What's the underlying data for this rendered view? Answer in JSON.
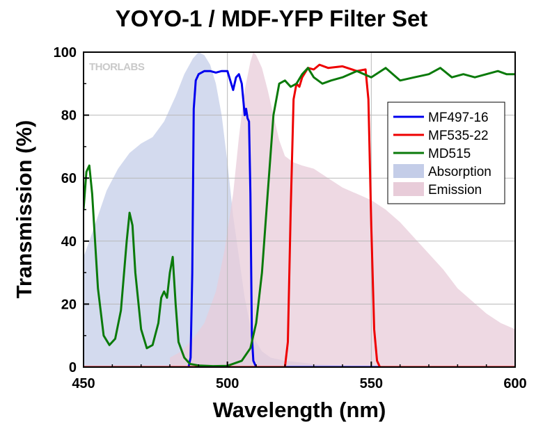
{
  "chart_data": {
    "type": "line",
    "title": "YOYO-1 / MDF-YFP Filter Set",
    "xlabel": "Wavelength (nm)",
    "ylabel": "Transmission (%)",
    "xlim": [
      450,
      600
    ],
    "ylim": [
      0,
      100
    ],
    "xticks": [
      450,
      500,
      550,
      600
    ],
    "yticks": [
      0,
      20,
      40,
      60,
      80,
      100
    ],
    "grid": true,
    "legend_position": "right",
    "watermark": "THORLABS",
    "series": [
      {
        "name": "MF497-16",
        "kind": "line",
        "color": "#0000ee",
        "x": [
          450,
          486.5,
          487.2,
          487.8,
          488.3,
          489,
          490,
          492,
          494,
          496,
          498,
          500,
          501,
          502,
          503,
          504,
          505,
          506,
          506.5,
          507,
          507.5,
          508,
          508.5,
          509,
          510,
          600
        ],
        "y": [
          0,
          0,
          3,
          30,
          82,
          91,
          93,
          94,
          94,
          93.5,
          94,
          94,
          91,
          88,
          92,
          93,
          90,
          80,
          82,
          79,
          78,
          55,
          10,
          2,
          0,
          0
        ]
      },
      {
        "name": "MF535-22",
        "kind": "line",
        "color": "#ee0000",
        "x": [
          450,
          520,
          521,
          522,
          523,
          524,
          525,
          526,
          528,
          530,
          532,
          535,
          540,
          545,
          548,
          549,
          550,
          551,
          552,
          553,
          600
        ],
        "y": [
          0,
          0,
          8,
          50,
          85,
          90,
          89,
          92,
          95,
          94.5,
          96,
          95,
          95.5,
          94,
          94.5,
          85,
          45,
          12,
          2,
          0,
          0
        ]
      },
      {
        "name": "MD515",
        "kind": "line",
        "color": "#0a7a0a",
        "x": [
          450,
          451,
          452,
          453,
          455,
          457,
          459,
          461,
          463,
          465,
          466,
          467,
          468,
          470,
          472,
          474,
          476,
          477,
          478,
          479,
          480,
          481,
          482,
          483,
          485,
          487,
          490,
          495,
          500,
          505,
          508,
          510,
          512,
          514,
          516,
          518,
          520,
          522,
          524,
          526,
          528,
          530,
          533,
          536,
          540,
          545,
          550,
          555,
          560,
          565,
          570,
          574,
          578,
          582,
          586,
          590,
          594,
          597,
          600
        ],
        "y": [
          50,
          62,
          64,
          55,
          25,
          10,
          7,
          9,
          18,
          40,
          49,
          45,
          30,
          12,
          6,
          7,
          14,
          22,
          24,
          22,
          30,
          35,
          20,
          8,
          3,
          1,
          0.5,
          0.3,
          0.4,
          2,
          6,
          14,
          30,
          55,
          80,
          90,
          91,
          89,
          90,
          93,
          95,
          92,
          90,
          91,
          92,
          94,
          92,
          95,
          91,
          92,
          93,
          95,
          92,
          93,
          92,
          93,
          94,
          93,
          93
        ]
      },
      {
        "name": "Absorption",
        "kind": "area",
        "color": "#c4cde8",
        "x": [
          450,
          452,
          455,
          458,
          462,
          466,
          470,
          474,
          478,
          482,
          485,
          488,
          490,
          492,
          494,
          496,
          498,
          500,
          502,
          504,
          506,
          508,
          510,
          512,
          515,
          520,
          530,
          540,
          550,
          560,
          600
        ],
        "y": [
          35,
          40,
          48,
          56,
          63,
          68,
          71,
          73,
          78,
          86,
          93,
          98,
          100,
          99,
          96,
          90,
          80,
          65,
          48,
          35,
          22,
          13,
          8,
          5,
          3,
          2,
          1,
          0.5,
          0,
          0,
          0
        ]
      },
      {
        "name": "Emission",
        "kind": "area",
        "color": "#e8ccd9",
        "x": [
          480,
          484,
          488,
          492,
          496,
          499,
          502,
          504,
          506,
          508,
          509,
          510,
          512,
          514,
          516,
          518,
          520,
          523,
          526,
          530,
          535,
          540,
          545,
          550,
          555,
          560,
          565,
          570,
          575,
          580,
          585,
          590,
          595,
          600
        ],
        "y": [
          3,
          5,
          9,
          14,
          24,
          37,
          55,
          73,
          88,
          97,
          100,
          99,
          95,
          88,
          80,
          72,
          67,
          65,
          64,
          63,
          60,
          57,
          55,
          53,
          50,
          46,
          41,
          36,
          31,
          25,
          21,
          17,
          14,
          12
        ]
      }
    ]
  }
}
